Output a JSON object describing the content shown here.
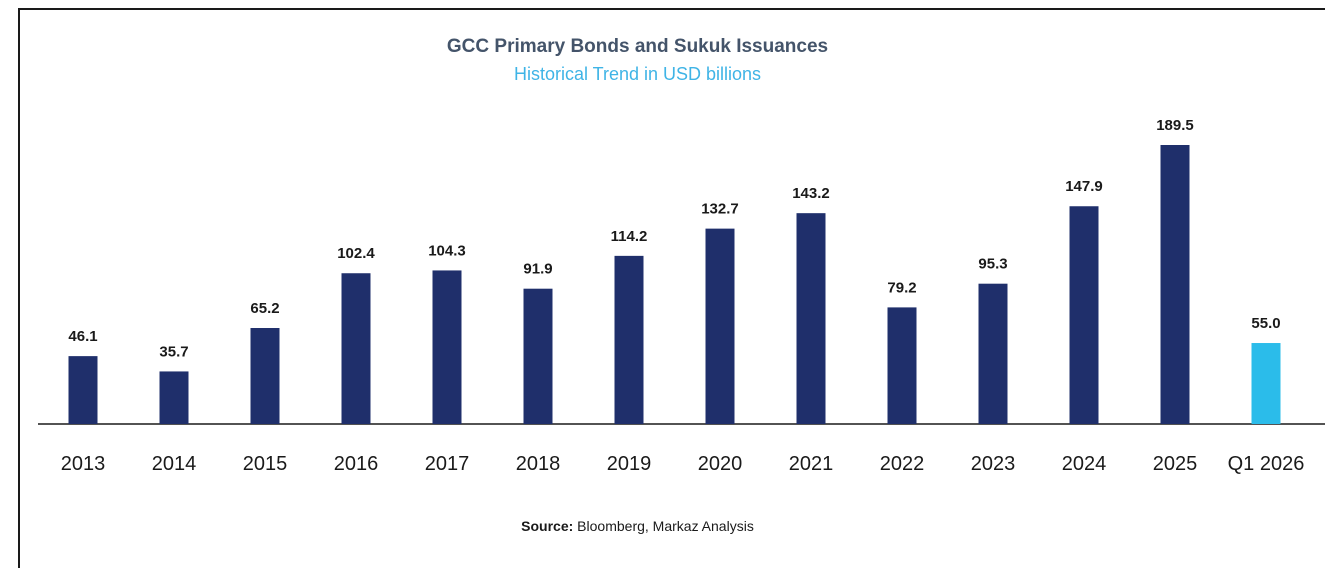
{
  "colors": {
    "bar": "#1f2f6b",
    "highlight_bar": "#2bbcea",
    "title": "#44546a",
    "subtitle": "#3fb4e6",
    "axis": "#1a1a1a"
  },
  "chart_data": {
    "type": "bar",
    "title": "GCC Primary Bonds and Sukuk Issuances",
    "subtitle": "Historical Trend in USD billions",
    "categories": [
      "2013",
      "2014",
      "2015",
      "2016",
      "2017",
      "2018",
      "2019",
      "2020",
      "2021",
      "2022",
      "2023",
      "2024",
      "2025",
      "Q1 2026"
    ],
    "values": [
      46.1,
      35.7,
      65.2,
      102.4,
      104.3,
      91.9,
      114.2,
      132.7,
      143.2,
      79.2,
      95.3,
      147.9,
      189.5,
      55.0
    ],
    "data_labels": [
      "46.1",
      "35.7",
      "65.2",
      "102.4",
      "104.3",
      "91.9",
      "114.2",
      "132.7",
      "143.2",
      "79.2",
      "95.3",
      "147.9",
      "189.5",
      "55.0"
    ],
    "highlight_categories": [
      "Q1 2026"
    ],
    "xlabel": "",
    "ylabel": "",
    "ylim": [
      0,
      200
    ],
    "grid": false,
    "legend": "none"
  },
  "source": {
    "label": "Source:",
    "text": " Bloomberg, Markaz Analysis"
  }
}
